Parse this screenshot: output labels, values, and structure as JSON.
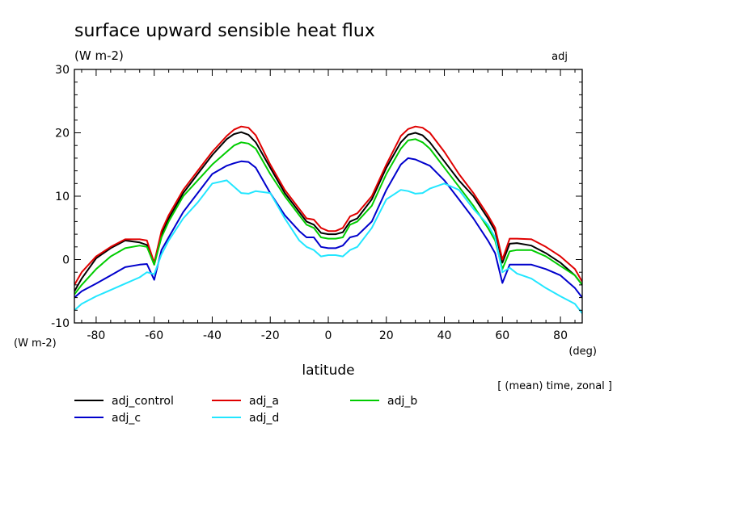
{
  "chart_data": {
    "type": "line",
    "title": "surface upward sensible heat flux",
    "units_label": "(W m-2)",
    "corner_label": "adj",
    "ylabel": "(W m-2)",
    "xlabel": "latitude",
    "x_unit": "(deg)",
    "note": "[ (mean) time, zonal ]",
    "xlim": [
      -87.5,
      87.5
    ],
    "ylim": [
      -10,
      30
    ],
    "x_ticks": [
      -80,
      -60,
      -40,
      -20,
      0,
      20,
      40,
      60,
      80
    ],
    "x_tick_labels": [
      "-80",
      "-60",
      "-40",
      "-20",
      "0",
      "20",
      "40",
      "60",
      "80"
    ],
    "y_ticks": [
      -10,
      0,
      10,
      20,
      30
    ],
    "y_tick_labels": [
      "-10",
      "0",
      "10",
      "20",
      "30"
    ],
    "grid": false,
    "legend_position": "bottom",
    "x": [
      -87.5,
      -85,
      -80,
      -75,
      -70,
      -65,
      -62.5,
      -60,
      -57.5,
      -55,
      -50,
      -45,
      -40,
      -35,
      -32.5,
      -30,
      -27.5,
      -25,
      -20,
      -15,
      -10,
      -7.5,
      -5,
      -2.5,
      0,
      2.5,
      5,
      7.5,
      10,
      15,
      20,
      25,
      27.5,
      30,
      32.5,
      35,
      40,
      45,
      50,
      55,
      57.5,
      60,
      62.5,
      65,
      70,
      75,
      80,
      85,
      87.5
    ],
    "series": [
      {
        "name": "adj_control",
        "color": "#000000",
        "values": [
          -5.0,
          -3.0,
          0.2,
          1.8,
          3.0,
          2.7,
          2.3,
          -0.8,
          4.0,
          6.5,
          10.5,
          13.5,
          16.5,
          19.0,
          19.8,
          20.1,
          19.7,
          18.5,
          14.5,
          10.5,
          7.5,
          6.0,
          5.5,
          4.2,
          4.0,
          4.0,
          4.3,
          6.0,
          6.5,
          9.5,
          14.5,
          18.5,
          19.7,
          20.0,
          19.6,
          18.5,
          15.5,
          12.5,
          10.0,
          6.5,
          4.5,
          -0.5,
          2.5,
          2.6,
          2.2,
          1.0,
          -0.5,
          -2.5,
          -4.0
        ]
      },
      {
        "name": "adj_a",
        "color": "#e00000",
        "values": [
          -4.0,
          -2.0,
          0.5,
          2.0,
          3.2,
          3.2,
          3.0,
          -0.5,
          4.5,
          7.0,
          11.0,
          14.0,
          17.0,
          19.5,
          20.5,
          21.0,
          20.8,
          19.6,
          15.0,
          11.0,
          8.0,
          6.5,
          6.3,
          5.0,
          4.5,
          4.5,
          5.0,
          6.8,
          7.3,
          10.0,
          15.0,
          19.5,
          20.6,
          21.0,
          20.8,
          20.0,
          17.0,
          13.5,
          10.5,
          7.0,
          5.0,
          0.0,
          3.3,
          3.3,
          3.2,
          2.0,
          0.5,
          -1.5,
          -3.5
        ]
      },
      {
        "name": "adj_b",
        "color": "#00cc00",
        "values": [
          -5.5,
          -4.0,
          -1.5,
          0.5,
          1.8,
          2.2,
          2.0,
          -0.8,
          3.5,
          6.0,
          10.0,
          12.5,
          15.0,
          17.0,
          18.0,
          18.5,
          18.3,
          17.5,
          13.5,
          10.0,
          7.0,
          5.5,
          5.0,
          3.5,
          3.3,
          3.3,
          3.5,
          5.5,
          6.0,
          8.5,
          13.5,
          17.5,
          18.8,
          19.0,
          18.5,
          17.5,
          14.5,
          11.5,
          8.5,
          5.0,
          3.0,
          -1.5,
          1.3,
          1.5,
          1.5,
          0.5,
          -1.0,
          -2.5,
          -4.0
        ]
      },
      {
        "name": "adj_c",
        "color": "#0000cc",
        "values": [
          -6.0,
          -5.0,
          -3.8,
          -2.5,
          -1.2,
          -0.8,
          -0.7,
          -3.2,
          1.5,
          3.5,
          7.5,
          10.5,
          13.5,
          14.8,
          15.2,
          15.5,
          15.4,
          14.5,
          10.5,
          7.0,
          4.5,
          3.5,
          3.5,
          2.0,
          1.8,
          1.8,
          2.2,
          3.5,
          3.8,
          6.0,
          11.0,
          15.0,
          16.0,
          15.8,
          15.3,
          14.8,
          12.5,
          9.5,
          6.5,
          3.0,
          1.0,
          -3.7,
          -0.8,
          -0.8,
          -0.8,
          -1.5,
          -2.5,
          -4.5,
          -6.0
        ]
      },
      {
        "name": "adj_d",
        "color": "#22e6ff",
        "values": [
          -8.0,
          -7.0,
          -5.8,
          -4.8,
          -3.8,
          -2.8,
          -2.0,
          -2.3,
          0.8,
          3.0,
          6.5,
          9.0,
          12.0,
          12.5,
          11.5,
          10.5,
          10.4,
          10.8,
          10.5,
          6.5,
          3.0,
          2.0,
          1.5,
          0.5,
          0.7,
          0.7,
          0.5,
          1.5,
          2.0,
          5.0,
          9.5,
          11.0,
          10.8,
          10.4,
          10.5,
          11.2,
          12.0,
          11.0,
          8.0,
          5.5,
          3.5,
          -2.0,
          -1.3,
          -2.2,
          -3.0,
          -4.5,
          -5.8,
          -7.0,
          -8.5
        ]
      }
    ]
  }
}
